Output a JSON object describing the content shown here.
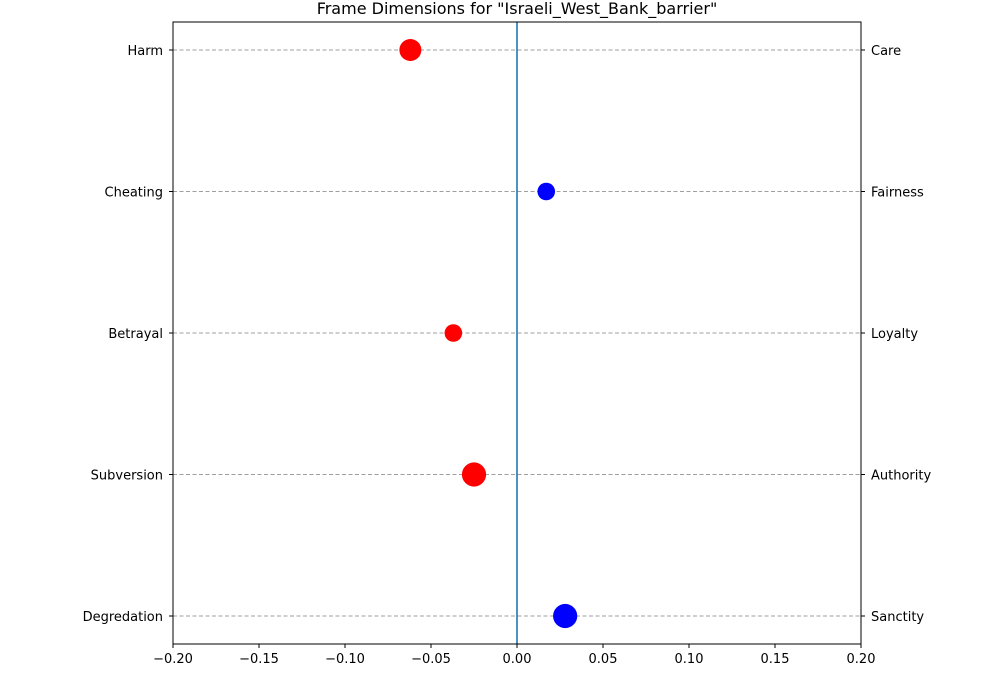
{
  "chart_data": {
    "type": "scatter",
    "title": "Frame Dimensions for \"Israeli_West_Bank_barrier\"",
    "xlabel": "",
    "ylabel": "",
    "xlim": [
      -0.2,
      0.2
    ],
    "x_ticks": [
      -0.2,
      -0.15,
      -0.1,
      -0.05,
      0.0,
      0.05,
      0.1,
      0.15,
      0.2
    ],
    "x_tick_labels": [
      "−0.20",
      "−0.15",
      "−0.10",
      "−0.05",
      "0.00",
      "0.05",
      "0.10",
      "0.15",
      "0.20"
    ],
    "grid": "horizontal dashed at each category",
    "zero_line_color": "#1f77b4",
    "dimensions": [
      {
        "left_label": "Harm",
        "right_label": "Care",
        "value": -0.062,
        "relative_size": 1.0,
        "color": "#ff0000"
      },
      {
        "left_label": "Cheating",
        "right_label": "Fairness",
        "value": 0.017,
        "relative_size": 0.8,
        "color": "#0000ff"
      },
      {
        "left_label": "Betrayal",
        "right_label": "Loyalty",
        "value": -0.037,
        "relative_size": 0.8,
        "color": "#ff0000"
      },
      {
        "left_label": "Subversion",
        "right_label": "Authority",
        "value": -0.025,
        "relative_size": 1.1,
        "color": "#ff0000"
      },
      {
        "left_label": "Degredation",
        "right_label": "Sanctity",
        "value": 0.028,
        "relative_size": 1.1,
        "color": "#0000ff"
      }
    ]
  }
}
